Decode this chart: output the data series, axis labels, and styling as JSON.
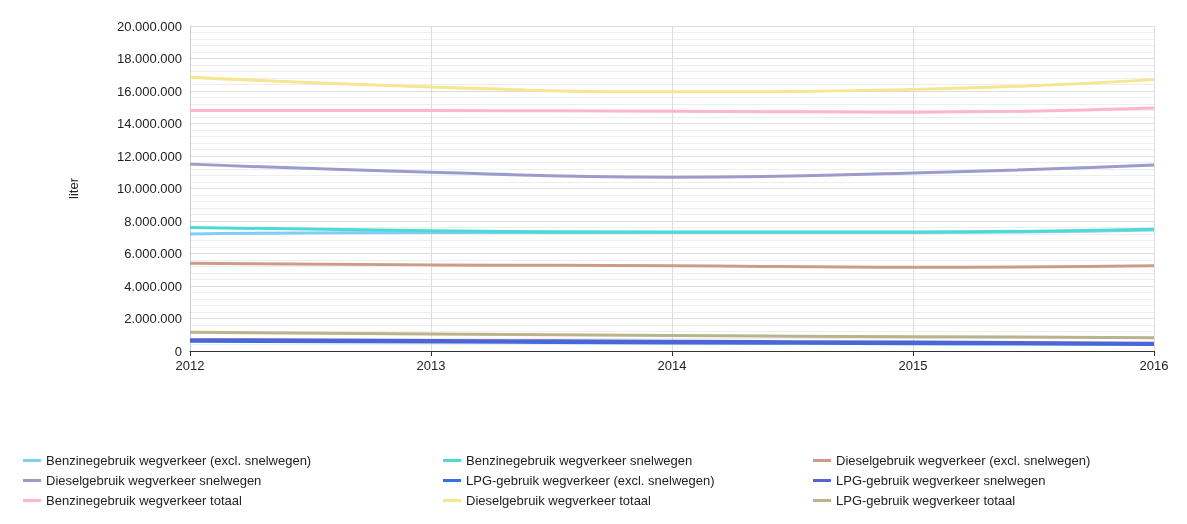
{
  "chart_data": {
    "type": "line",
    "ylabel": "liter",
    "x": [
      2012,
      2013,
      2014,
      2015,
      2016
    ],
    "xlim": [
      2012,
      2016
    ],
    "xticks": [
      2012,
      2013,
      2014,
      2015,
      2016
    ],
    "ylim": [
      0,
      20000000
    ],
    "yticks": [
      {
        "value": 0,
        "label": "0"
      },
      {
        "value": 2000000,
        "label": "2.000.000"
      },
      {
        "value": 4000000,
        "label": "4.000.000"
      },
      {
        "value": 6000000,
        "label": "6.000.000"
      },
      {
        "value": 8000000,
        "label": "8.000.000"
      },
      {
        "value": 10000000,
        "label": "10.000.000"
      },
      {
        "value": 12000000,
        "label": "12.000.000"
      },
      {
        "value": 14000000,
        "label": "14.000.000"
      },
      {
        "value": 16000000,
        "label": "16.000.000"
      },
      {
        "value": 18000000,
        "label": "18.000.000"
      },
      {
        "value": 20000000,
        "label": "20.000.000"
      }
    ],
    "grid": true,
    "legend": "bottom",
    "marker": "none",
    "line_style": "solid",
    "series": [
      {
        "name": "Benzinegebruik wegverkeer (excl. snelwegen)",
        "color": "#80cdf8",
        "values": [
          7200000,
          7300000,
          7300000,
          7300000,
          7450000
        ]
      },
      {
        "name": "Benzinegebruik wegverkeer snelwegen",
        "color": "#4adcd4",
        "values": [
          7600000,
          7400000,
          7330000,
          7330000,
          7500000
        ]
      },
      {
        "name": "Dieselgebruik wegverkeer (excl. snelwegen)",
        "color": "#cc9c88",
        "values": [
          5400000,
          5300000,
          5250000,
          5150000,
          5250000
        ]
      },
      {
        "name": "Dieselgebruik wegverkeer snelwegen",
        "color": "#9b9bcc",
        "values": [
          11500000,
          11000000,
          10700000,
          10950000,
          11450000
        ]
      },
      {
        "name": "LPG-gebruik wegverkeer (excl. snelwegen)",
        "color": "#3470e0",
        "values": [
          600000,
          550000,
          500000,
          450000,
          400000
        ]
      },
      {
        "name": "LPG-gebruik wegverkeer snelwegen",
        "color": "#5563d2",
        "values": [
          700000,
          650000,
          600000,
          550000,
          480000
        ]
      },
      {
        "name": "Benzinegebruik wegverkeer totaal",
        "color": "#ffb6cc",
        "values": [
          14800000,
          14800000,
          14750000,
          14700000,
          14950000
        ]
      },
      {
        "name": "Dieselgebruik wegverkeer totaal",
        "color": "#f6e690",
        "values": [
          16850000,
          16250000,
          15950000,
          16100000,
          16700000
        ]
      },
      {
        "name": "LPG-gebruik wegverkeer totaal",
        "color": "#b8b48c",
        "values": [
          1150000,
          1050000,
          950000,
          880000,
          820000
        ]
      }
    ]
  }
}
